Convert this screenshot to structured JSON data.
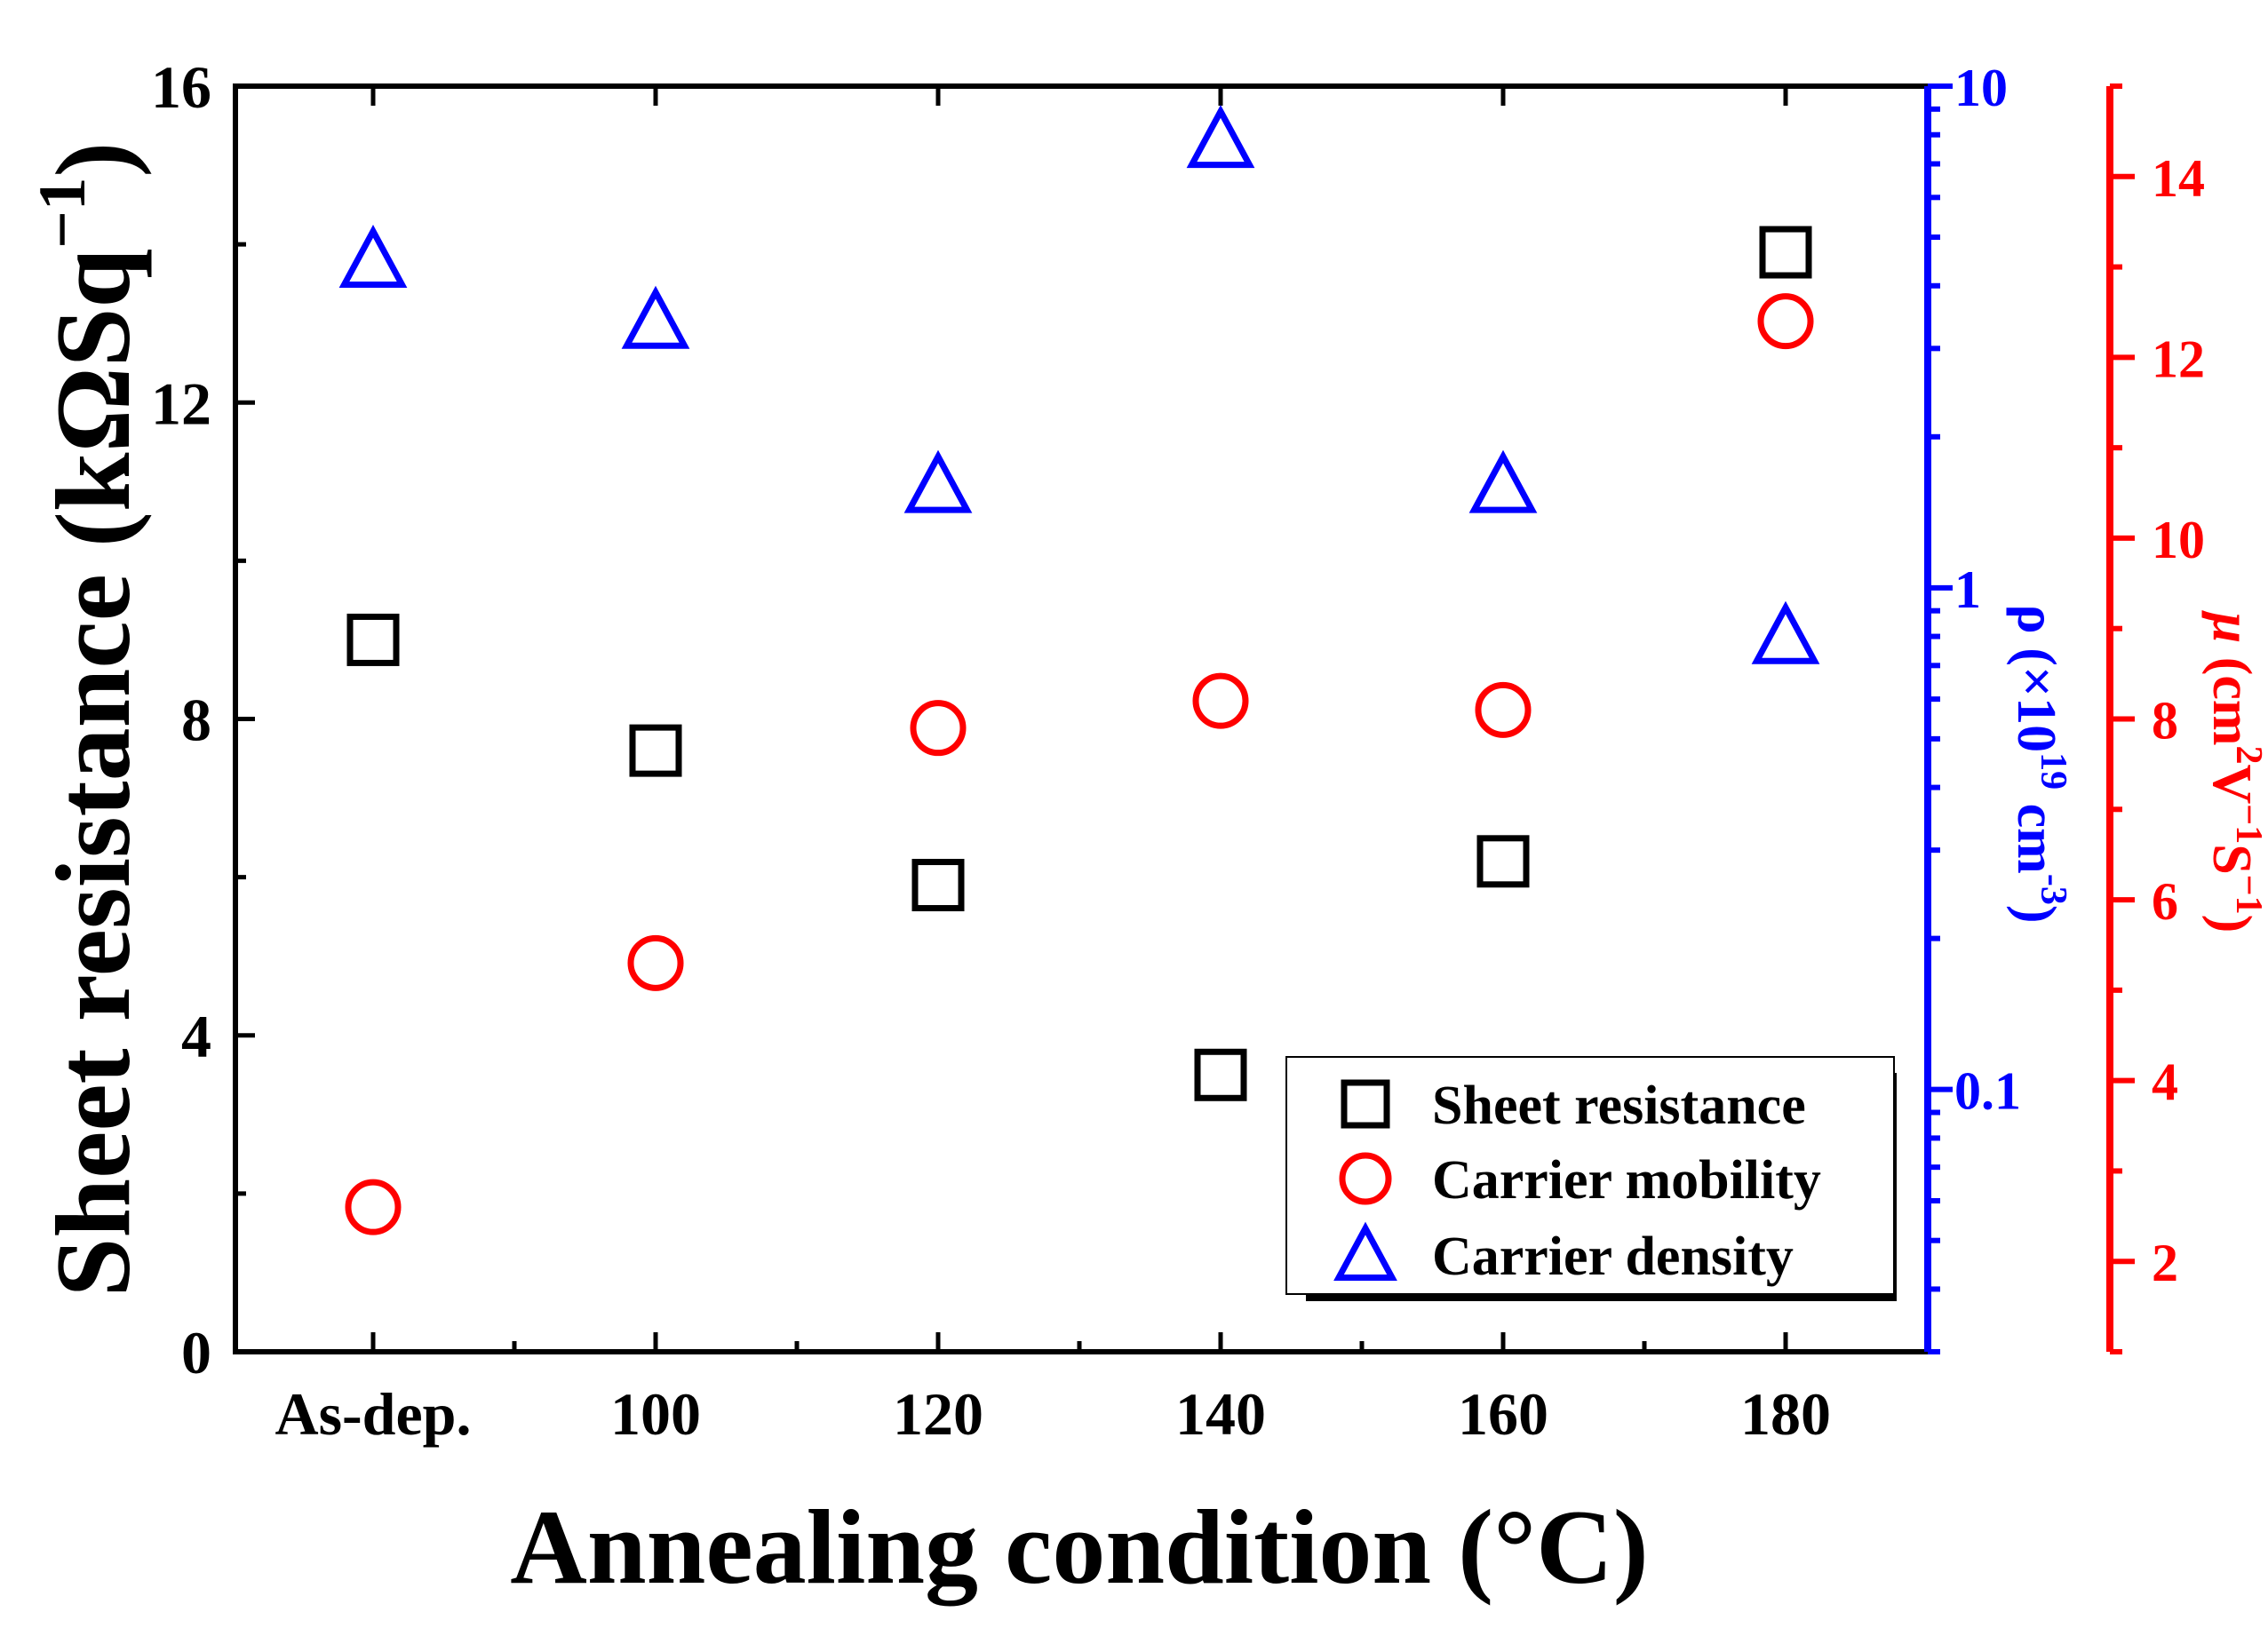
{
  "chart_data": {
    "type": "scatter",
    "xlabel": "Annealing condition (°C)",
    "categories": [
      "As-dep.",
      "100",
      "120",
      "140",
      "160",
      "180"
    ],
    "axes": {
      "left": {
        "label": "Sheet resistance (kΩSq⁻¹)",
        "label_parts": {
          "pre": "Sheet resistance (kΩSq",
          "sup": "−1",
          "post": ")"
        },
        "range": [
          0,
          16
        ],
        "scale": "linear",
        "ticks": [
          0,
          4,
          8,
          12,
          16
        ],
        "tick_labels": [
          "0",
          "4",
          "8",
          "12",
          "16"
        ],
        "color": "#000000"
      },
      "right_blue": {
        "label": "ρ (×10¹⁹ cm⁻³)",
        "label_parts": {
          "pre": "ρ (×10",
          "sup1": "19",
          "mid": " cm",
          "sup2": "-3",
          "post": ")"
        },
        "range": [
          0.03,
          10
        ],
        "scale": "log",
        "ticks": [
          0.1,
          1,
          10
        ],
        "tick_labels": [
          "0.1",
          "1",
          "10"
        ],
        "color": "#0000ff"
      },
      "right_red": {
        "label": "μ (cm²V⁻¹S⁻¹)",
        "label_parts": {
          "mu": "μ",
          "pre": " (cm",
          "sup1": "2",
          "mid1": "V",
          "sup2": "−1",
          "mid2": "S",
          "sup3": "−1",
          "post": ")"
        },
        "range": [
          1,
          15
        ],
        "scale": "linear",
        "ticks": [
          2,
          4,
          6,
          8,
          10,
          12,
          14
        ],
        "tick_labels": [
          "2",
          "4",
          "6",
          "8",
          "10",
          "12",
          "14"
        ],
        "color": "#ff0000"
      }
    },
    "series": [
      {
        "name": "Sheet resistance",
        "marker": "square",
        "color": "#000000",
        "axis": "left",
        "values": [
          9.0,
          7.6,
          5.9,
          3.5,
          6.2,
          13.9
        ]
      },
      {
        "name": "Carrier mobility",
        "marker": "circle",
        "color": "#ff0000",
        "axis": "right_red",
        "values": [
          2.6,
          5.3,
          7.9,
          8.2,
          8.1,
          12.4
        ]
      },
      {
        "name": "Carrier density",
        "marker": "triangle",
        "color": "#0000ff",
        "axis": "right_blue",
        "values": [
          4.5,
          3.4,
          1.6,
          7.8,
          1.6,
          0.8
        ]
      }
    ],
    "legend": {
      "position": "bottom-right",
      "entries": [
        "Sheet resistance",
        "Carrier mobility",
        "Carrier density"
      ]
    }
  }
}
